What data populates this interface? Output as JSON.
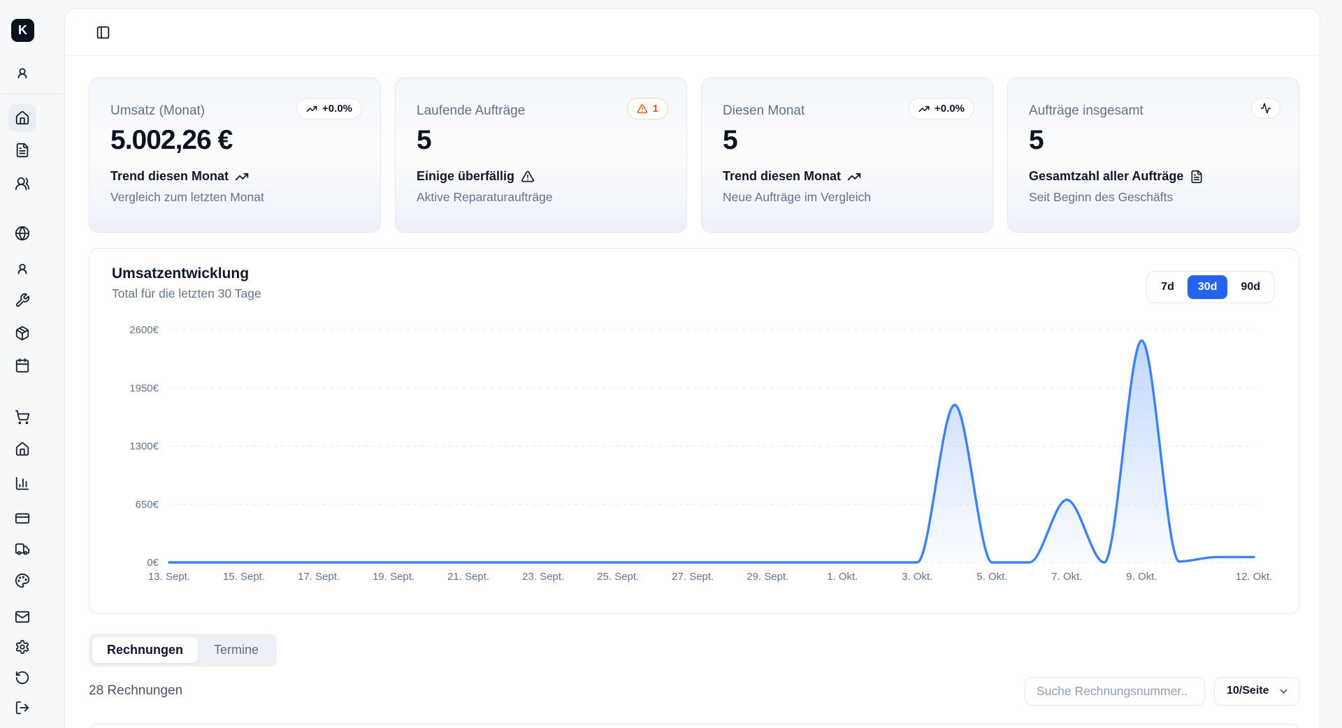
{
  "app": {
    "logo_letter": "K"
  },
  "colors": {
    "accent": "#2563eb",
    "chart_line": "#3b82f6",
    "warning": "#ea580c"
  },
  "sidebar": {
    "items": [
      {
        "icon": "user-round"
      },
      {
        "icon": "house",
        "active": true
      },
      {
        "icon": "file-text"
      },
      {
        "icon": "users-round"
      },
      {
        "icon": "globe"
      },
      {
        "icon": "user-round"
      },
      {
        "icon": "wrench"
      },
      {
        "icon": "package"
      },
      {
        "icon": "calendar"
      },
      {
        "icon": "shopping-cart"
      },
      {
        "icon": "house"
      },
      {
        "icon": "chart-column"
      },
      {
        "icon": "credit-card"
      },
      {
        "icon": "truck"
      },
      {
        "icon": "palette"
      },
      {
        "icon": "mail"
      },
      {
        "icon": "settings"
      },
      {
        "icon": "rotate-ccw"
      },
      {
        "icon": "log-out"
      }
    ]
  },
  "header": {
    "toggle_icon": "panel-left"
  },
  "stat_cards": [
    {
      "label": "Umsatz (Monat)",
      "value": "5.002,26 €",
      "badge": {
        "icon": "trending-up",
        "label": "+0.0%"
      },
      "trend_label": "Trend diesen Monat",
      "trend_icon": "trending-up",
      "description": "Vergleich zum letzten Monat"
    },
    {
      "label": "Laufende Aufträge",
      "value": "5",
      "badge": {
        "icon": "alert-triangle",
        "label": "1"
      },
      "trend_label": "Einige überfällig",
      "trend_icon": "alert-triangle",
      "description": "Aktive Reparaturaufträge"
    },
    {
      "label": "Diesen Monat",
      "value": "5",
      "badge": {
        "icon": "trending-up",
        "label": "+0.0%"
      },
      "trend_label": "Trend diesen Monat",
      "trend_icon": "trending-up",
      "description": "Neue Aufträge im Vergleich"
    },
    {
      "label": "Aufträge insgesamt",
      "value": "5",
      "badge": {
        "icon": "activity",
        "label": ""
      },
      "trend_label": "Gesamtzahl aller Aufträge",
      "trend_icon": "file-text",
      "description": "Seit Beginn des Geschäfts"
    }
  ],
  "chart": {
    "title": "Umsatzentwicklung",
    "subtitle": "Total für die letzten 30 Tage",
    "range_buttons": [
      {
        "label": "7d",
        "active": false
      },
      {
        "label": "30d",
        "active": true
      },
      {
        "label": "90d",
        "active": false
      }
    ]
  },
  "chart_data": {
    "type": "area",
    "title": "Umsatzentwicklung",
    "xlabel": "",
    "ylabel": "€",
    "ylim": [
      0,
      2600
    ],
    "grid": "dashed",
    "legend": "none",
    "x": [
      "13. Sept.",
      "14. Sept.",
      "15. Sept.",
      "16. Sept.",
      "17. Sept.",
      "18. Sept.",
      "19. Sept.",
      "20. Sept.",
      "21. Sept.",
      "22. Sept.",
      "23. Sept.",
      "24. Sept.",
      "25. Sept.",
      "26. Sept.",
      "27. Sept.",
      "28. Sept.",
      "29. Sept.",
      "30. Sept.",
      "1. Okt.",
      "2. Okt.",
      "3. Okt.",
      "4. Okt.",
      "5. Okt.",
      "6. Okt.",
      "7. Okt.",
      "8. Okt.",
      "9. Okt.",
      "10. Okt.",
      "11. Okt.",
      "12. Okt."
    ],
    "values": [
      0,
      0,
      0,
      0,
      0,
      0,
      0,
      0,
      0,
      0,
      0,
      0,
      0,
      0,
      0,
      0,
      0,
      0,
      0,
      0,
      0,
      1760,
      0,
      0,
      700,
      0,
      2480,
      10,
      60,
      60
    ],
    "x_tick_indices": [
      0,
      2,
      4,
      6,
      8,
      10,
      12,
      14,
      16,
      18,
      20,
      22,
      24,
      26,
      29
    ],
    "y_ticks": [
      0,
      650,
      1300,
      1950,
      2600
    ],
    "y_tick_labels": [
      "0€",
      "650€",
      "1300€",
      "1950€",
      "2600€"
    ]
  },
  "tabs": [
    {
      "label": "Rechnungen",
      "active": true
    },
    {
      "label": "Termine",
      "active": false
    }
  ],
  "invoices": {
    "count_label": "28 Rechnungen",
    "search_placeholder": "Suche Rechnungsnummer..",
    "page_size": "10/Seite"
  }
}
